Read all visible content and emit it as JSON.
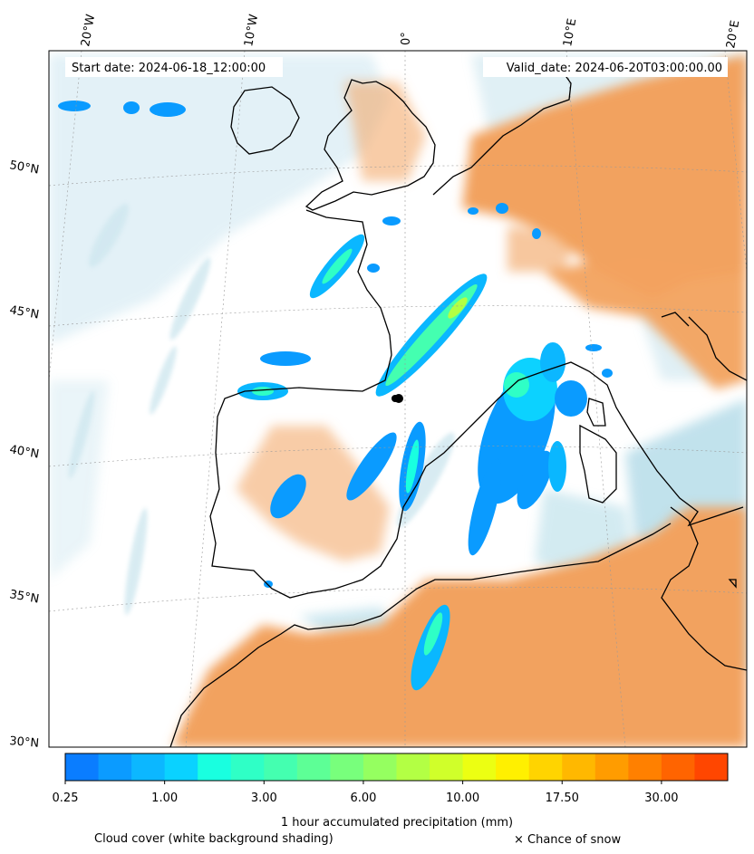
{
  "header": {
    "start_date": "Start date: 2024-06-18_12:00:00",
    "valid_date": "Valid_date: 2024-06-20T03:00:00.00"
  },
  "axes": {
    "lon_labels": [
      "20°W",
      "10°W",
      "0°",
      "10°E",
      "20°E"
    ],
    "lat_labels": [
      "50°N",
      "45°N",
      "40°N",
      "35°N",
      "30°N"
    ]
  },
  "colorbar": {
    "label": "1 hour accumulated precipitation (mm)",
    "tick_labels": [
      "0.25",
      "1.00",
      "3.00",
      "6.00",
      "10.00",
      "17.50",
      "30.00"
    ],
    "colors": [
      "#0a7dff",
      "#0b9bff",
      "#0cb7ff",
      "#0ad2ff",
      "#19ffe0",
      "#2fffc6",
      "#44ffb0",
      "#5dff96",
      "#78ff7c",
      "#95ff60",
      "#b3ff44",
      "#d0ff2a",
      "#ecff12",
      "#fff000",
      "#ffd400",
      "#ffb800",
      "#ff9c00",
      "#ff8000",
      "#ff6400",
      "#ff4600"
    ]
  },
  "footer": {
    "cloud_note": "Cloud cover (white background shading)",
    "snow_note": "× Chance of snow"
  },
  "colors": {
    "land_dry": "#f2a25e",
    "sea": "#add8e6",
    "coast": "#000000"
  }
}
